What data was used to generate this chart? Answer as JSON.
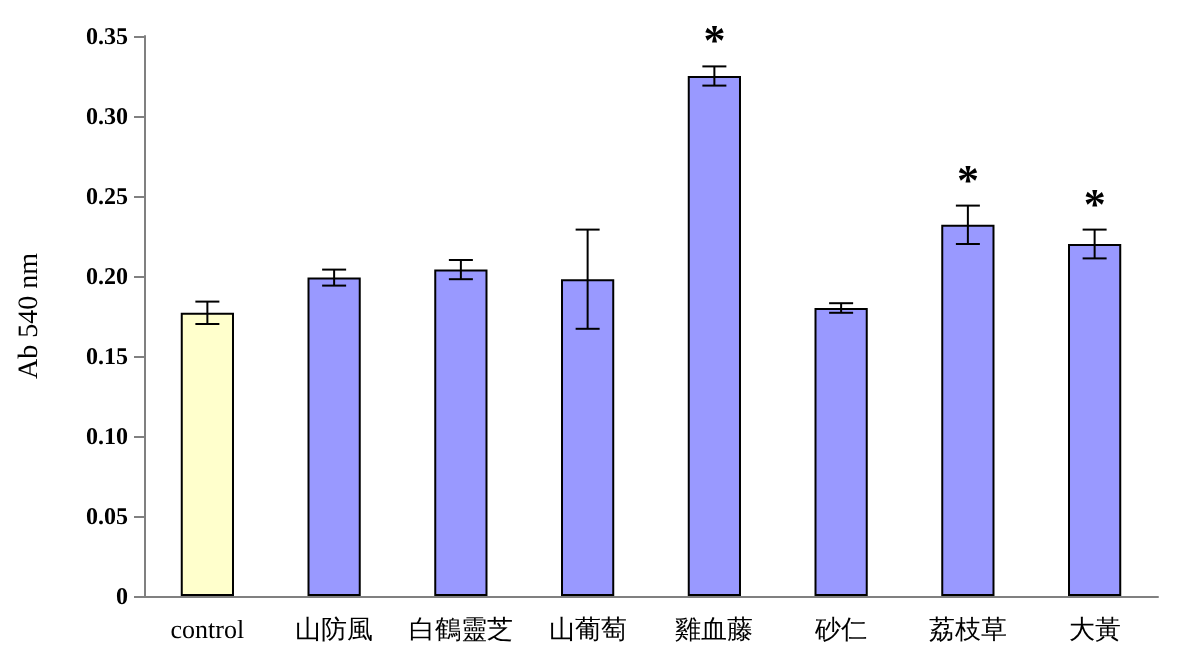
{
  "chart_data": {
    "type": "bar",
    "ylabel": "Ab 540 nm",
    "categories": [
      "control",
      "山防風",
      "白鶴靈芝",
      "山葡萄",
      "雞血藤",
      "砂仁",
      "荔枝草",
      "大黃"
    ],
    "values": [
      0.177,
      0.199,
      0.204,
      0.198,
      0.325,
      0.18,
      0.232,
      0.22
    ],
    "colors": [
      "#ffffcc",
      "#9999ff",
      "#9999ff",
      "#9999ff",
      "#9999ff",
      "#9999ff",
      "#9999ff",
      "#9999ff"
    ],
    "errors": [
      0.007,
      0.005,
      0.006,
      0.031,
      0.006,
      0.003,
      0.012,
      0.009
    ],
    "ylim": [
      0,
      0.35
    ],
    "yticks": [
      {
        "value": 0,
        "label": "0"
      },
      {
        "value": 0.05,
        "label": "0.05"
      },
      {
        "value": 0.1,
        "label": "0.10"
      },
      {
        "value": 0.15,
        "label": "0.15"
      },
      {
        "value": 0.2,
        "label": "0.20"
      },
      {
        "value": 0.25,
        "label": "0.25"
      },
      {
        "value": 0.3,
        "label": "0.30"
      },
      {
        "value": 0.35,
        "label": "0.35"
      }
    ],
    "annotations": [
      {
        "text": "*",
        "x": "雞血藤",
        "y": 0.331
      },
      {
        "text": "*",
        "x": "荔枝草",
        "y": 0.244
      },
      {
        "text": "*",
        "x": "大黃",
        "y": 0.229
      }
    ],
    "grid": false
  }
}
